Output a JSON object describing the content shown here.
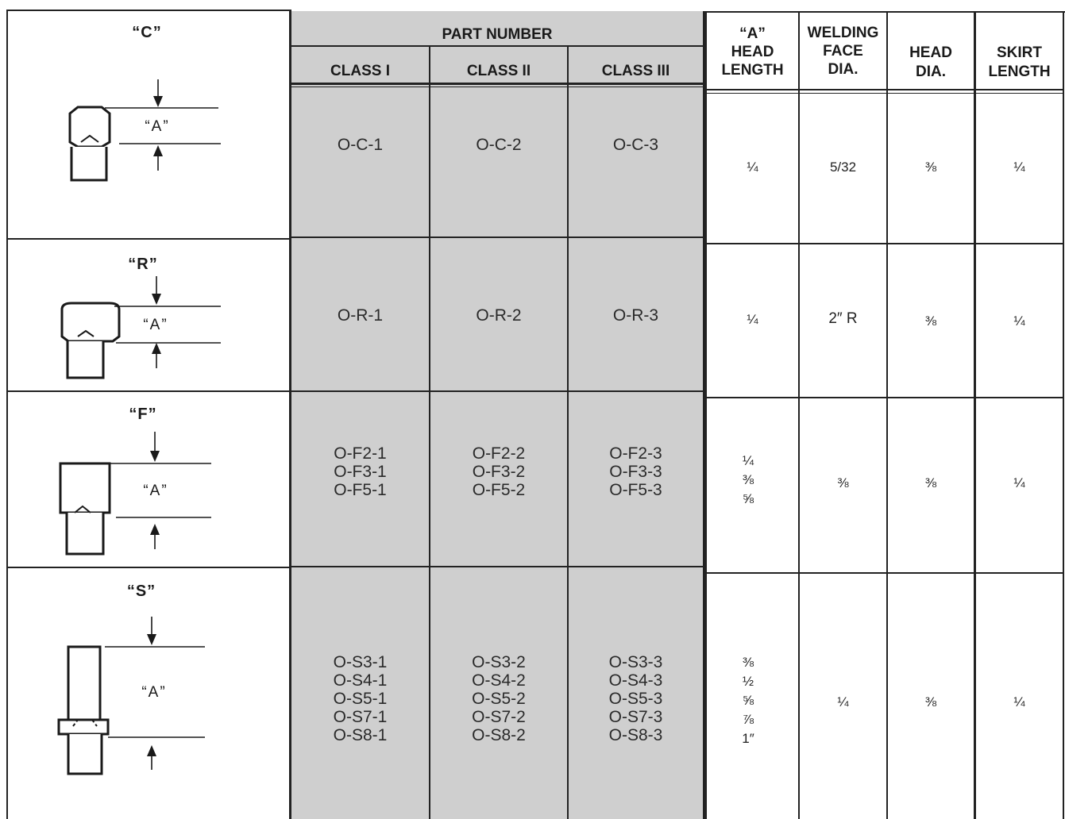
{
  "header": {
    "part_number": "PART NUMBER",
    "class_1": "CLASS I",
    "class_2": "CLASS II",
    "class_3": "CLASS III",
    "col_a_l1": "“A”",
    "col_a_l2": "HEAD",
    "col_a_l3": "LENGTH",
    "col_wf_l1": "WELDING",
    "col_wf_l2": "FACE",
    "col_wf_l3": "DIA.",
    "col_hd_l1": "HEAD",
    "col_hd_l2": "DIA.",
    "col_sk_l1": "SKIRT",
    "col_sk_l2": "LENGTH"
  },
  "rows": [
    {
      "shape": "“C”",
      "dim_label": "“A”",
      "class_1": "O-C-1",
      "class_2": "O-C-2",
      "class_3": "O-C-3",
      "head_length": "¼",
      "welding_face": "5/32",
      "head_dia": "⅜",
      "skirt_length": "¼"
    },
    {
      "shape": "“R”",
      "dim_label": "“A”",
      "class_1": "O-R-1",
      "class_2": "O-R-2",
      "class_3": "O-R-3",
      "head_length": "¼",
      "welding_face": "2″ R",
      "head_dia": "⅜",
      "skirt_length": "¼"
    },
    {
      "shape": "“F”",
      "dim_label": "“A”",
      "class_1": "O-F2-1\nO-F3-1\nO-F5-1",
      "class_2": "O-F2-2\nO-F3-2\nO-F5-2",
      "class_3": "O-F2-3\nO-F3-3\nO-F5-3",
      "head_length": "¼\n⅜\n⅝",
      "welding_face": "⅜",
      "head_dia": "⅜",
      "skirt_length": "¼"
    },
    {
      "shape": "“S”",
      "dim_label": "“A”",
      "class_1": "O-S3-1\nO-S4-1\nO-S5-1\nO-S7-1\nO-S8-1",
      "class_2": "O-S3-2\nO-S4-2\nO-S5-2\nO-S7-2\nO-S8-2",
      "class_3": "O-S3-3\nO-S4-3\nO-S5-3\nO-S7-3\nO-S8-3",
      "head_length": "⅜\n½\n⅝\n⅞\n1″",
      "welding_face": "¼",
      "head_dia": "⅜",
      "skirt_length": "¼"
    }
  ],
  "colors": {
    "panel_gray": "#cfcfcf",
    "ink": "#1a1a1a"
  }
}
